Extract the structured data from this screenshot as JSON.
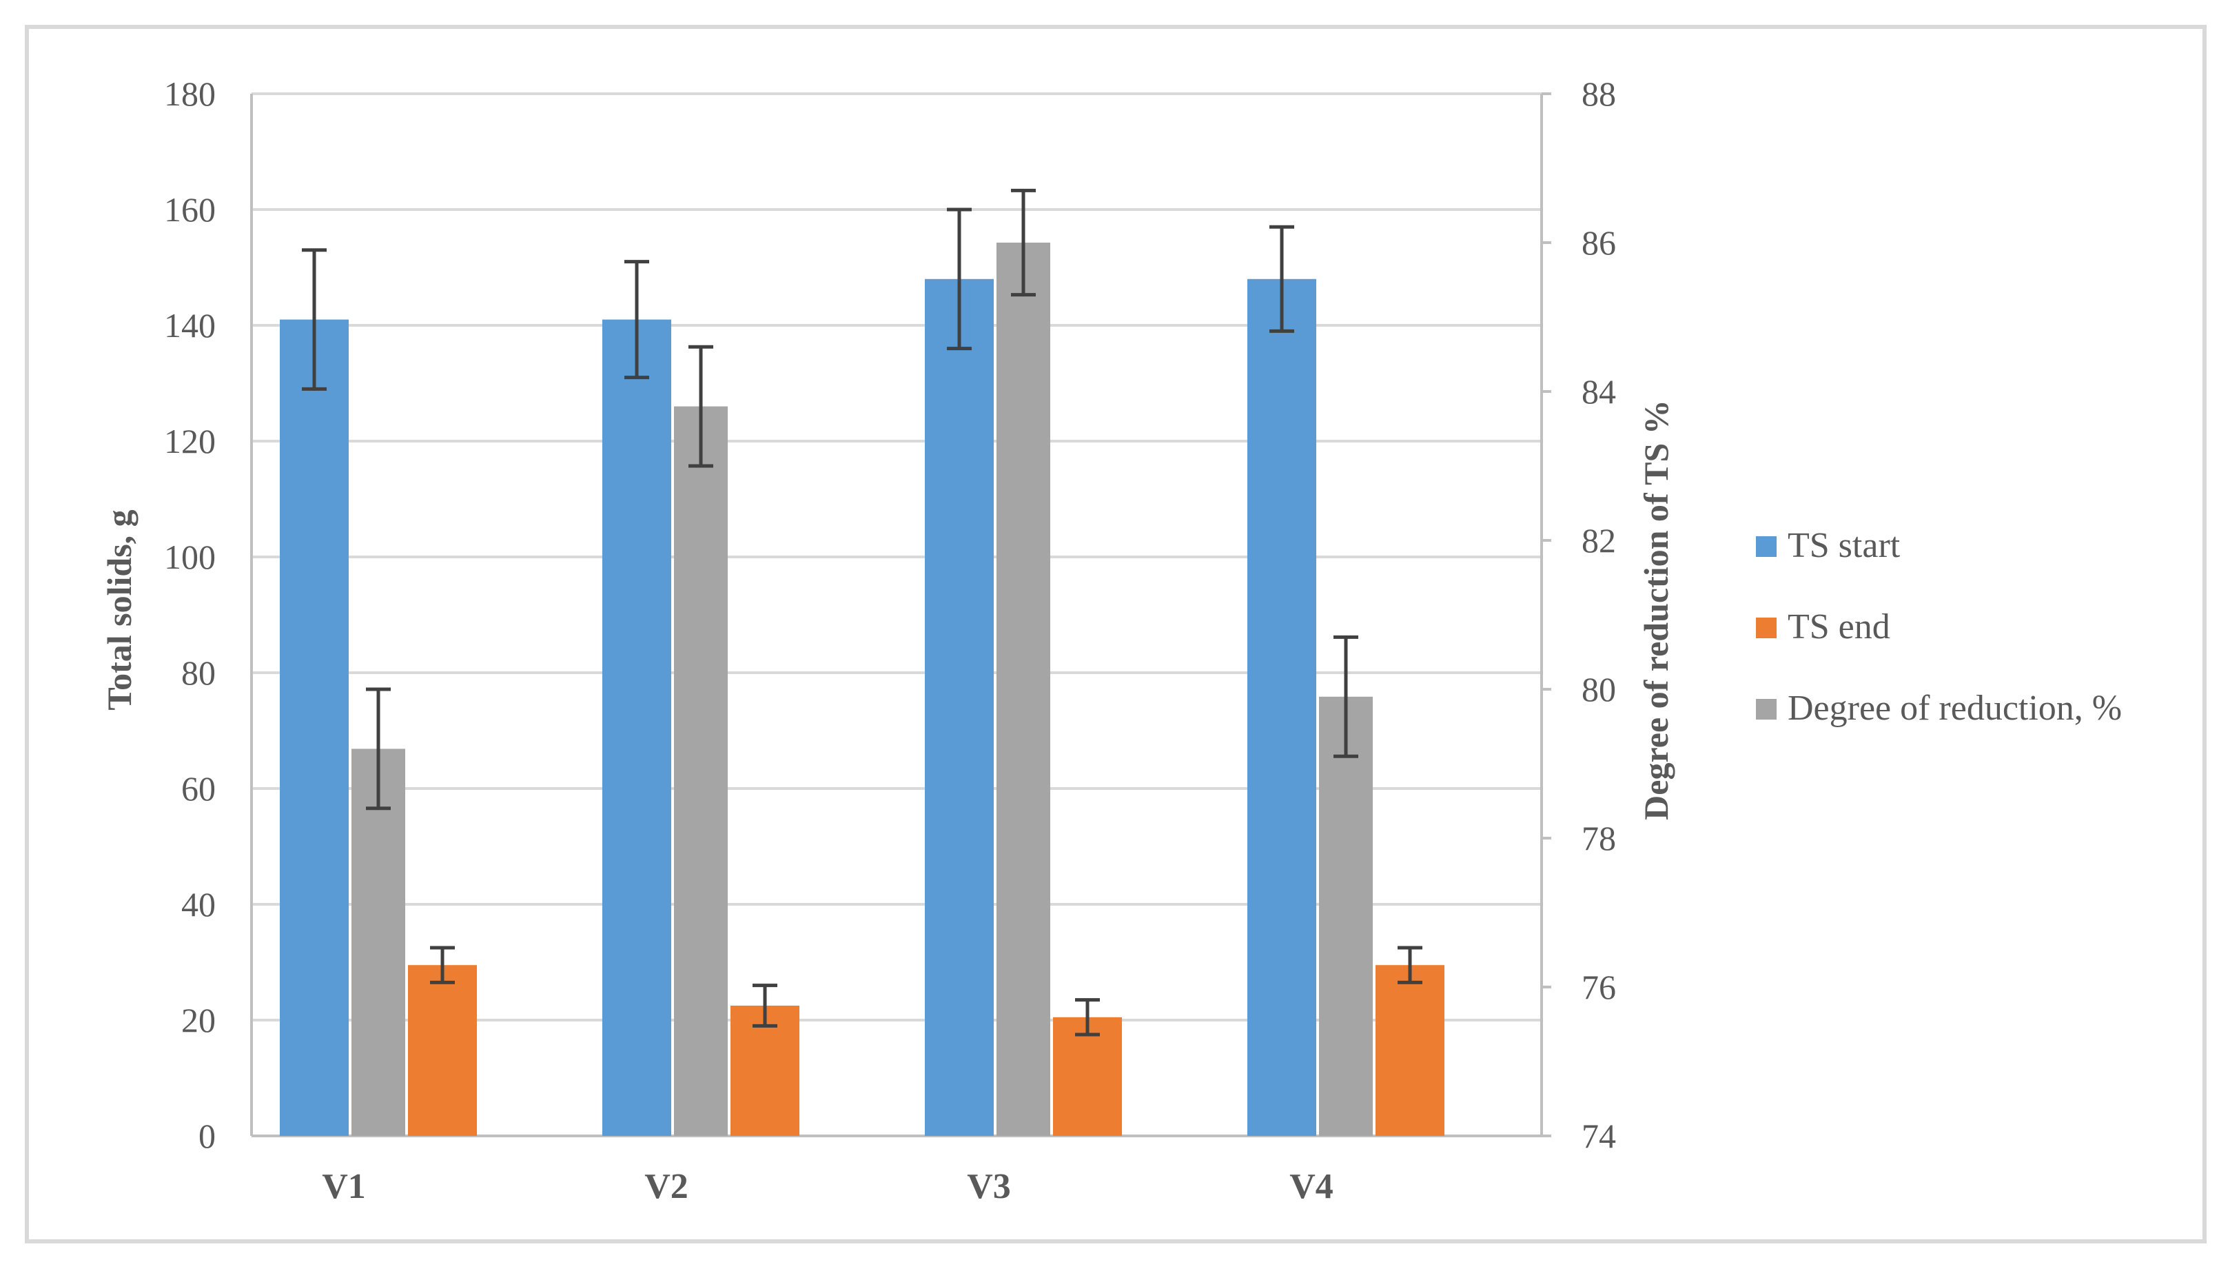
{
  "chart_data": {
    "type": "bar",
    "categories": [
      "V1",
      "V2",
      "V3",
      "V4"
    ],
    "title": "",
    "xlabel": "",
    "ylabel": "Total solids, g",
    "y2label": "Degree of reduction of TS %",
    "ylim": [
      0,
      180
    ],
    "yticks": [
      0,
      20,
      40,
      60,
      80,
      100,
      120,
      140,
      160,
      180
    ],
    "y2lim": [
      74,
      88
    ],
    "y2ticks": [
      74,
      76,
      78,
      80,
      82,
      84,
      86,
      88
    ],
    "grid": true,
    "legend_position": "right",
    "series": [
      {
        "name": "TS start",
        "axis": "left",
        "color": "#5b9bd5",
        "values": [
          141,
          141,
          148,
          148
        ],
        "errors": [
          12,
          10,
          12,
          9
        ]
      },
      {
        "name": "Degree of reduction, %",
        "axis": "right",
        "color": "#a5a5a5",
        "values": [
          79.2,
          83.8,
          86.0,
          79.9
        ],
        "errors": [
          0.8,
          0.8,
          0.7,
          0.8
        ]
      },
      {
        "name": "TS end",
        "axis": "left",
        "color": "#ed7d31",
        "values": [
          29.5,
          22.5,
          20.5,
          29.5
        ],
        "errors": [
          3,
          3.5,
          3,
          3
        ]
      }
    ],
    "legend_order": [
      "TS start",
      "TS end",
      "Degree of reduction, %"
    ]
  }
}
